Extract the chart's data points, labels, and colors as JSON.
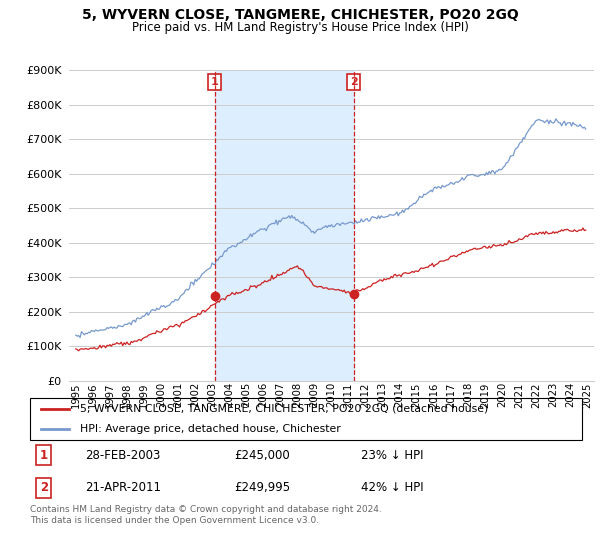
{
  "title": "5, WYVERN CLOSE, TANGMERE, CHICHESTER, PO20 2GQ",
  "subtitle": "Price paid vs. HM Land Registry's House Price Index (HPI)",
  "ylim": [
    0,
    900000
  ],
  "sale1": {
    "date": "28-FEB-2003",
    "price": 245000,
    "label": "1",
    "year": 2003.15,
    "pct": "23% ↓ HPI"
  },
  "sale2": {
    "date": "21-APR-2011",
    "price": 249995,
    "label": "2",
    "year": 2011.3,
    "pct": "42% ↓ HPI"
  },
  "red_color": "#cc2222",
  "blue_color": "#7799cc",
  "background_color": "#ffffff",
  "grid_color": "#cccccc",
  "shaded_region_color": "#ddeeff",
  "legend_line1": "5, WYVERN CLOSE, TANGMERE, CHICHESTER, PO20 2GQ (detached house)",
  "legend_line2": "HPI: Average price, detached house, Chichester",
  "footnote": "Contains HM Land Registry data © Crown copyright and database right 2024.\nThis data is licensed under the Open Government Licence v3.0."
}
